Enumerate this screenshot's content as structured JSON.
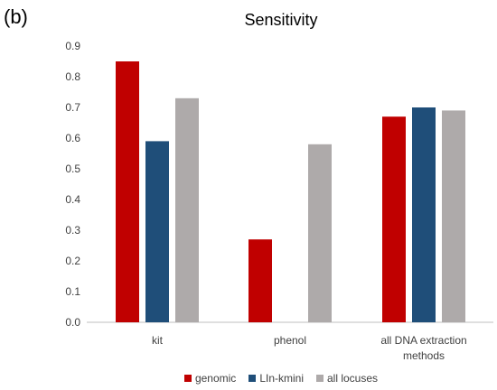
{
  "panel_label": "(b)",
  "chart_data": {
    "type": "bar",
    "title": "Sensitivity",
    "xlabel": "",
    "ylabel": "",
    "ylim": [
      0,
      0.9
    ],
    "y_ticks": [
      "0.0",
      "0.1",
      "0.2",
      "0.3",
      "0.4",
      "0.5",
      "0.6",
      "0.7",
      "0.8",
      "0.9"
    ],
    "grid": false,
    "legend_position": "bottom",
    "categories": [
      [
        "kit"
      ],
      [
        "phenol"
      ],
      [
        "all DNA extraction",
        "methods"
      ]
    ],
    "series": [
      {
        "name": "genomic",
        "color": "#C00000",
        "values": [
          0.85,
          0.27,
          0.67
        ]
      },
      {
        "name": "LIn-kmini",
        "color": "#1F4E79",
        "values": [
          0.59,
          null,
          0.7
        ]
      },
      {
        "name": "all locuses",
        "color": "#AEAAAA",
        "values": [
          0.73,
          0.58,
          0.69
        ]
      }
    ]
  }
}
